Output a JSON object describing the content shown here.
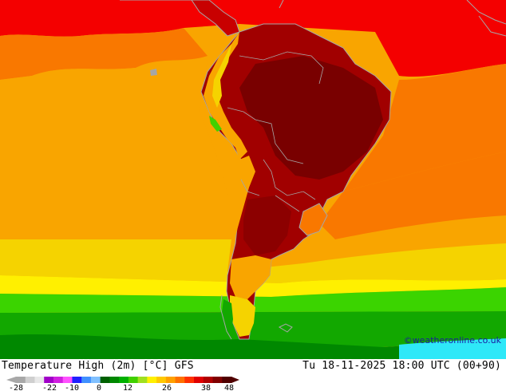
{
  "map": {
    "title": "Temperature High (2m) [°C] GFS",
    "datetime": "Tu 18-11-2025 18:00 UTC (00+90)",
    "credit": "©weatheronline.co.uk",
    "region": "South America",
    "variable": "2m maximum temperature",
    "unit": "°C",
    "colors": {
      "ocean_hot": "#f40000",
      "ocean_warm": "#f97800",
      "ocean_mild": "#f9a500",
      "ocean_cool": "#f5d300",
      "ocean_cold": "#12a800",
      "ocean_colder": "#3bd400",
      "antarctic_water": "#2ee8f8",
      "land_hot": "#a10000",
      "land_very_hot": "#790000",
      "coastline": "#a6a6a6"
    }
  },
  "legend": {
    "tick_labels": [
      "-28",
      "-22",
      "-10",
      "0",
      "12",
      "26",
      "38",
      "48"
    ],
    "colors": [
      "#a8a8a8",
      "#cfcfcf",
      "#e8e8e8",
      "#a000c8",
      "#d020e0",
      "#ff50ff",
      "#2020ff",
      "#4090ff",
      "#80c0ff",
      "#006000",
      "#008800",
      "#00b000",
      "#40d000",
      "#a0e020",
      "#fff000",
      "#ffc800",
      "#ffa000",
      "#ff7000",
      "#ff3000",
      "#e00000",
      "#b00000",
      "#800000",
      "#500000"
    ]
  }
}
